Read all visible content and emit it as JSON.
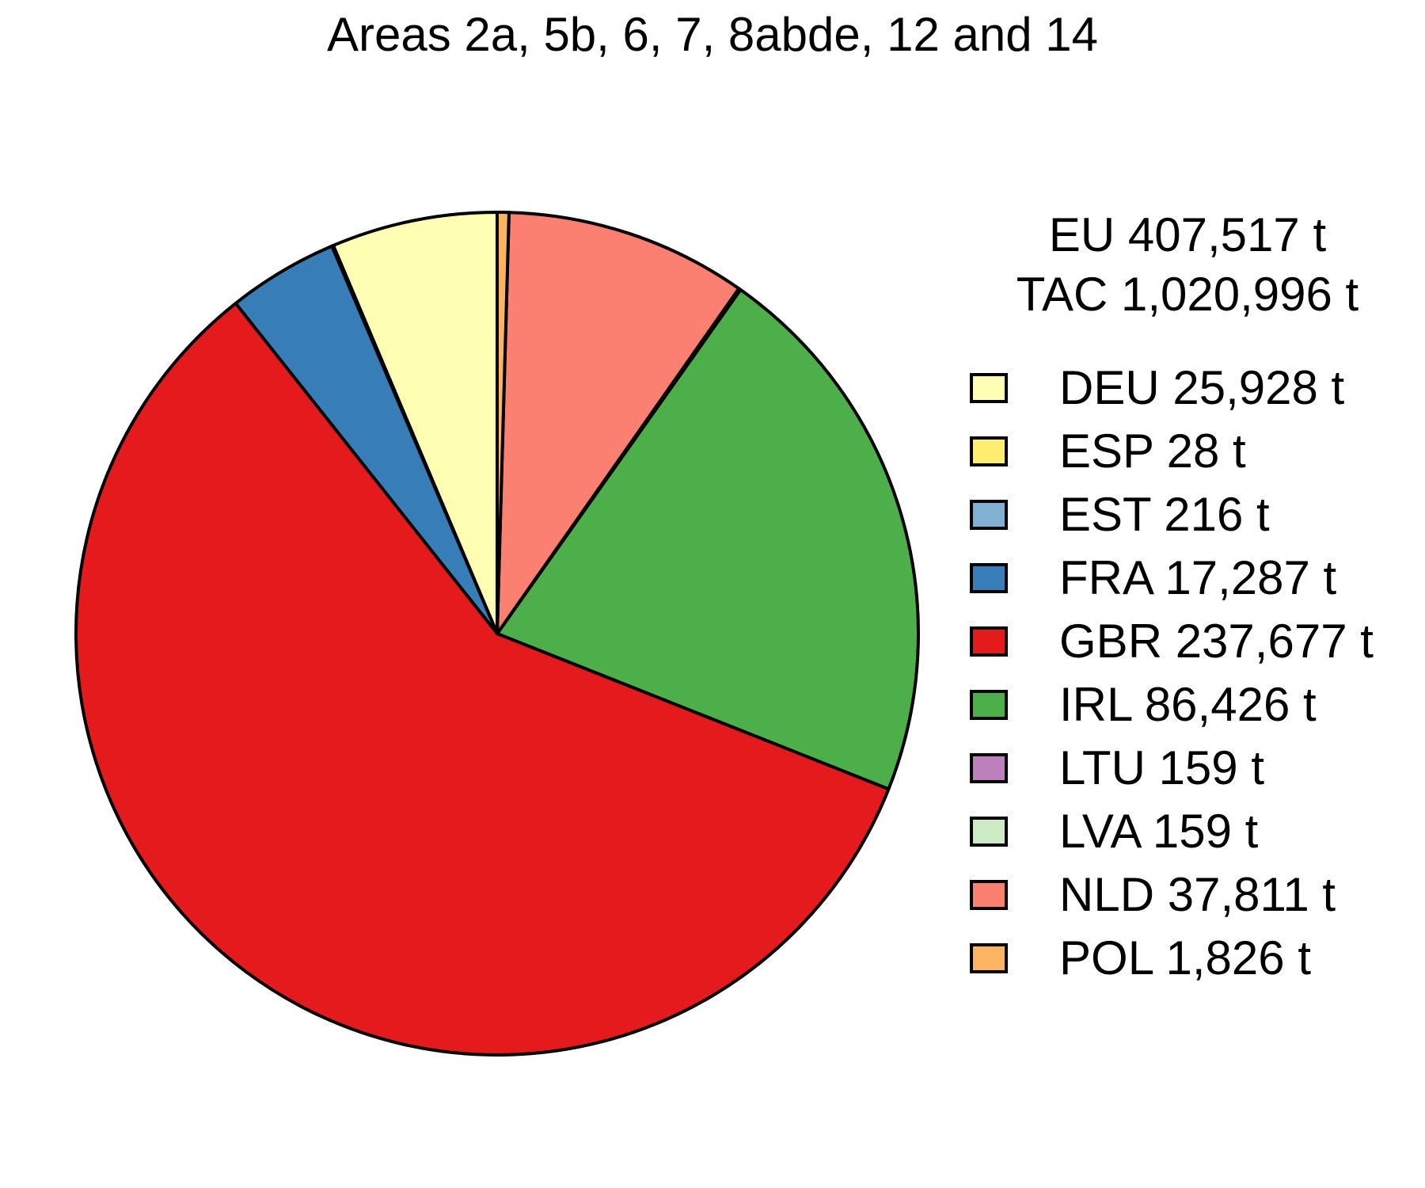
{
  "chart_data": {
    "type": "pie",
    "title": "Areas 2a, 5b, 6, 7, 8abde, 12 and 14",
    "totals": [
      "EU 407,517 t",
      "TAC 1,020,996 t"
    ],
    "unit": "t",
    "legend_position": "right",
    "slices": [
      {
        "label": "DEU 25,928 t",
        "value": 25928,
        "color": "#FFFFB3"
      },
      {
        "label": "ESP 28 t",
        "value": 28,
        "color": "#FFED6F"
      },
      {
        "label": "EST 216 t",
        "value": 216,
        "color": "#80B1D3"
      },
      {
        "label": "FRA 17,287 t",
        "value": 17287,
        "color": "#377EB8"
      },
      {
        "label": "GBR 237,677 t",
        "value": 237677,
        "color": "#E41A1C"
      },
      {
        "label": "IRL 86,426 t",
        "value": 86426,
        "color": "#4DAF4A"
      },
      {
        "label": "LTU 159 t",
        "value": 159,
        "color": "#BC80BD"
      },
      {
        "label": "LVA 159 t",
        "value": 159,
        "color": "#CCEBC5"
      },
      {
        "label": "NLD 37,811 t",
        "value": 37811,
        "color": "#FB8072"
      },
      {
        "label": "POL 1,826 t",
        "value": 1826,
        "color": "#FDB462"
      }
    ]
  }
}
